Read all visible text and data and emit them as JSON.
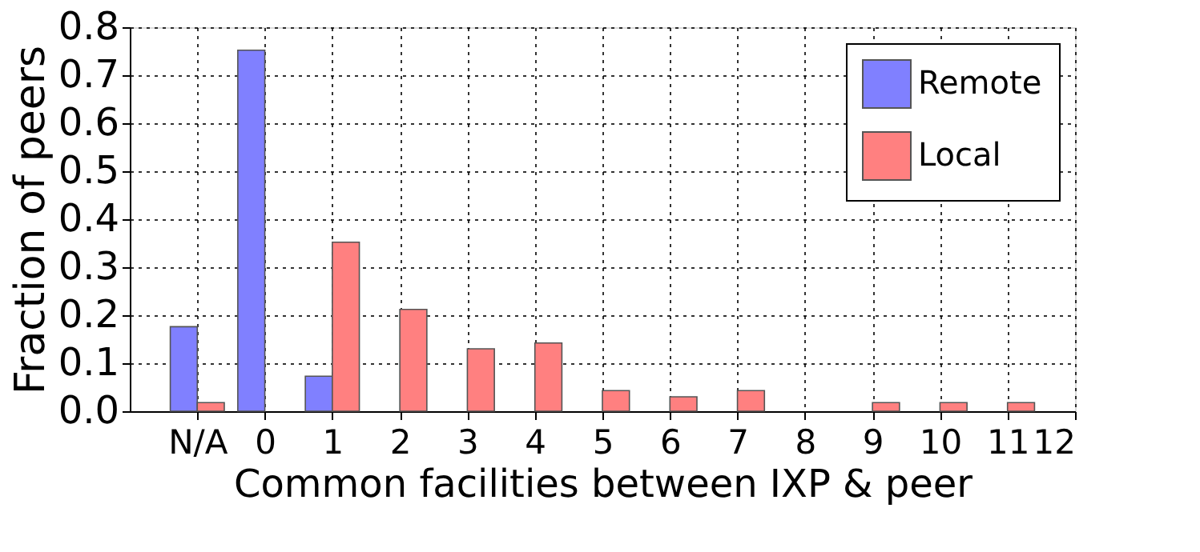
{
  "chart_data": {
    "type": "bar",
    "xlabel": "Common facilities between IXP & peer",
    "ylabel": "Fraction of peers",
    "x": [
      -1,
      0,
      1,
      2,
      3,
      4,
      5,
      6,
      7,
      8,
      9,
      10,
      11
    ],
    "series": [
      {
        "name": "Remote",
        "color": "#8080ff",
        "values": [
          0.176,
          0.752,
          0.073,
          null,
          null,
          null,
          null,
          null,
          null,
          null,
          null,
          null,
          null
        ]
      },
      {
        "name": "Local",
        "color": "#ff8080",
        "values": [
          0.018,
          null,
          0.352,
          0.212,
          0.13,
          0.142,
          0.043,
          0.03,
          0.043,
          null,
          0.018,
          0.018,
          0.018
        ]
      }
    ],
    "xlim": [
      -2,
      12
    ],
    "xticks": [
      {
        "value": -1,
        "label": "N/A"
      },
      0,
      1,
      2,
      3,
      4,
      5,
      6,
      7,
      8,
      9,
      10,
      11,
      12
    ],
    "ylim": [
      0,
      0.8
    ],
    "yticks": [
      {
        "value": 0,
        "label": "0.0"
      },
      0.1,
      0.2,
      0.3,
      0.4,
      0.5,
      0.6,
      0.7,
      0.8
    ],
    "grid": true,
    "legend": "top right"
  }
}
